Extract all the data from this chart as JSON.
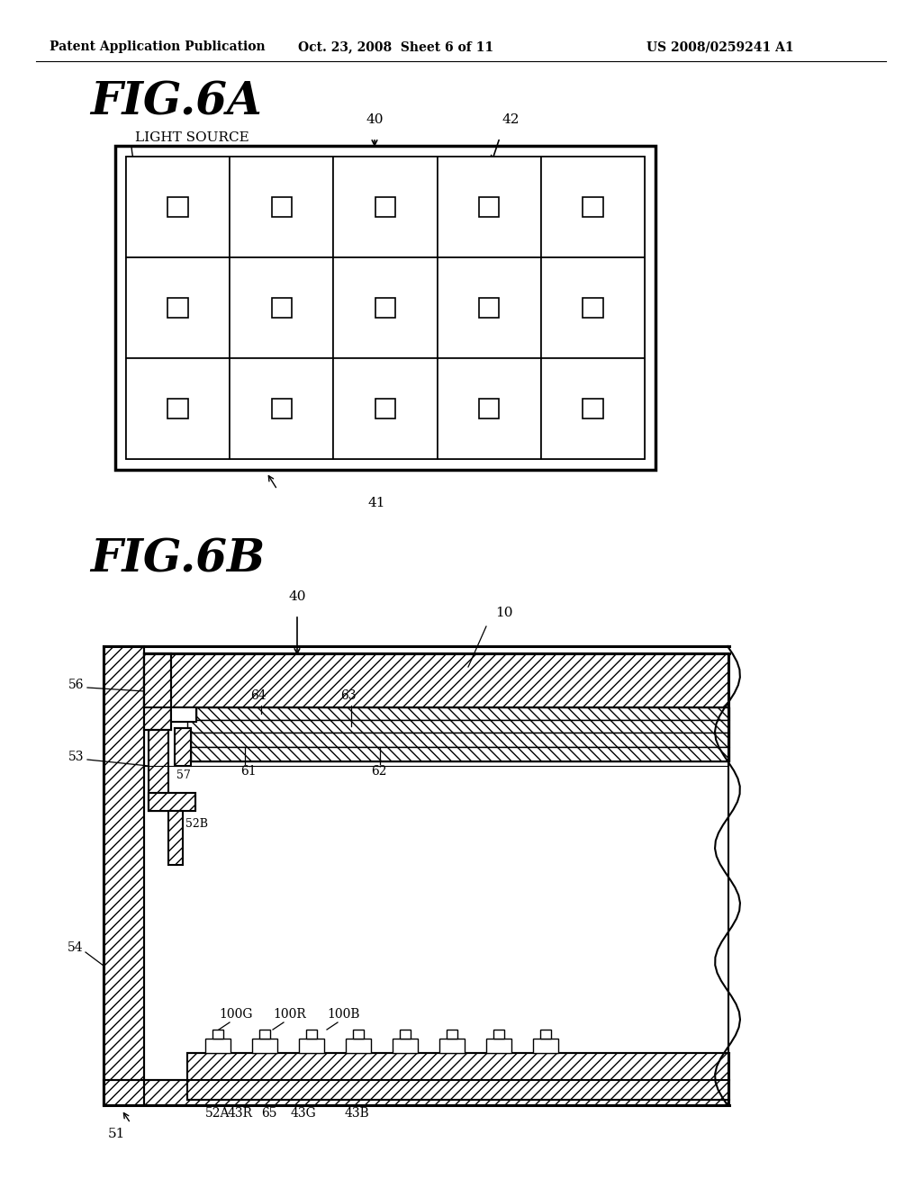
{
  "bg_color": "#ffffff",
  "header_text": "Patent Application Publication",
  "header_date": "Oct. 23, 2008  Sheet 6 of 11",
  "header_patent": "US 2008/0259241 A1",
  "fig6a_title": "FIG.6A",
  "fig6b_title": "FIG.6B"
}
